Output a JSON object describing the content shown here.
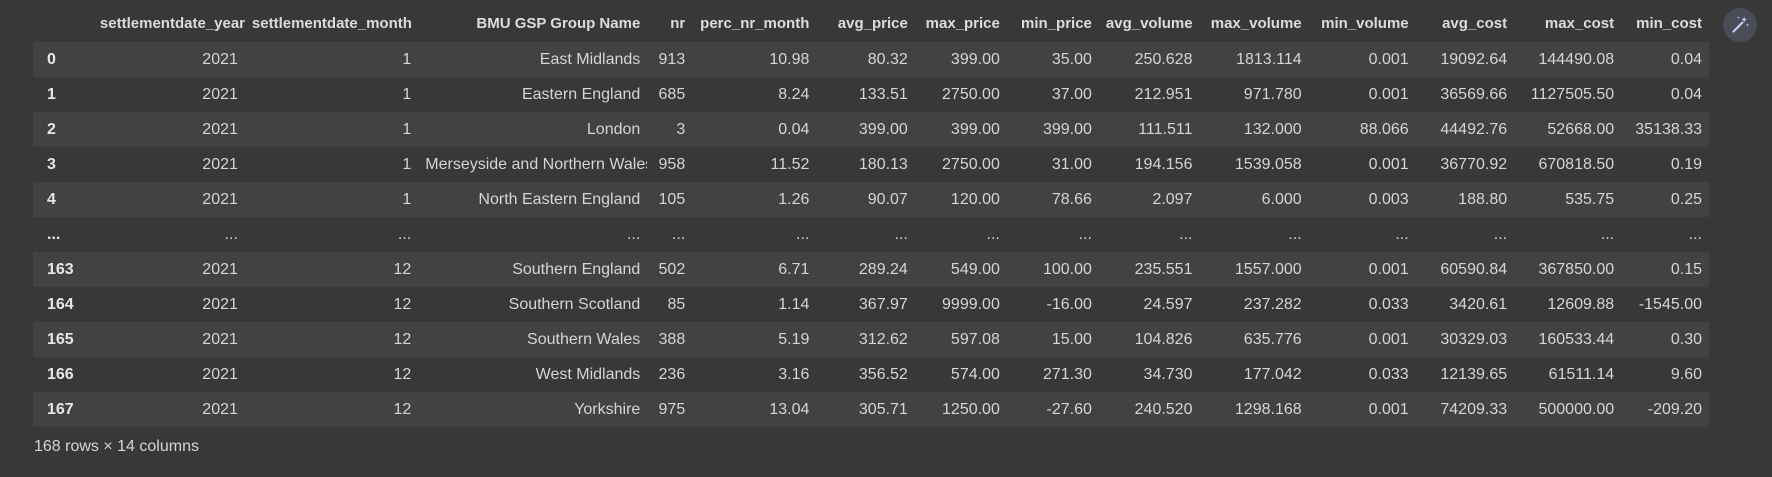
{
  "table": {
    "columns": [
      "",
      "settlementdate_year",
      "settlementdate_month",
      "BMU GSP Group Name",
      "nr",
      "perc_nr_month",
      "avg_price",
      "max_price",
      "min_price",
      "avg_volume",
      "max_volume",
      "min_volume",
      "avg_cost",
      "max_cost",
      "min_cost"
    ],
    "rows": [
      [
        "0",
        "2021",
        "1",
        "East Midlands",
        "913",
        "10.98",
        "80.32",
        "399.00",
        "35.00",
        "250.628",
        "1813.114",
        "0.001",
        "19092.64",
        "144490.08",
        "0.04"
      ],
      [
        "1",
        "2021",
        "1",
        "Eastern England",
        "685",
        "8.24",
        "133.51",
        "2750.00",
        "37.00",
        "212.951",
        "971.780",
        "0.001",
        "36569.66",
        "1127505.50",
        "0.04"
      ],
      [
        "2",
        "2021",
        "1",
        "London",
        "3",
        "0.04",
        "399.00",
        "399.00",
        "399.00",
        "111.511",
        "132.000",
        "88.066",
        "44492.76",
        "52668.00",
        "35138.33"
      ],
      [
        "3",
        "2021",
        "1",
        "Merseyside and Northern Wales",
        "958",
        "11.52",
        "180.13",
        "2750.00",
        "31.00",
        "194.156",
        "1539.058",
        "0.001",
        "36770.92",
        "670818.50",
        "0.19"
      ],
      [
        "4",
        "2021",
        "1",
        "North Eastern England",
        "105",
        "1.26",
        "90.07",
        "120.00",
        "78.66",
        "2.097",
        "6.000",
        "0.003",
        "188.80",
        "535.75",
        "0.25"
      ],
      [
        "...",
        "...",
        "...",
        "...",
        "...",
        "...",
        "...",
        "...",
        "...",
        "...",
        "...",
        "...",
        "...",
        "...",
        "..."
      ],
      [
        "163",
        "2021",
        "12",
        "Southern England",
        "502",
        "6.71",
        "289.24",
        "549.00",
        "100.00",
        "235.551",
        "1557.000",
        "0.001",
        "60590.84",
        "367850.00",
        "0.15"
      ],
      [
        "164",
        "2021",
        "12",
        "Southern Scotland",
        "85",
        "1.14",
        "367.97",
        "9999.00",
        "-16.00",
        "24.597",
        "237.282",
        "0.033",
        "3420.61",
        "12609.88",
        "-1545.00"
      ],
      [
        "165",
        "2021",
        "12",
        "Southern Wales",
        "388",
        "5.19",
        "312.62",
        "597.08",
        "15.00",
        "104.826",
        "635.776",
        "0.001",
        "30329.03",
        "160533.44",
        "0.30"
      ],
      [
        "166",
        "2021",
        "12",
        "West Midlands",
        "236",
        "3.16",
        "356.52",
        "574.00",
        "271.30",
        "34.730",
        "177.042",
        "0.033",
        "12139.65",
        "61511.14",
        "9.60"
      ],
      [
        "167",
        "2021",
        "12",
        "Yorkshire",
        "975",
        "13.04",
        "305.71",
        "1250.00",
        "-27.60",
        "240.520",
        "1298.168",
        "0.001",
        "74209.33",
        "500000.00",
        "-209.20"
      ]
    ]
  },
  "footer": {
    "summary": "168 rows × 14 columns"
  },
  "toolbar": {
    "icon": "magic-wand-icon"
  }
}
